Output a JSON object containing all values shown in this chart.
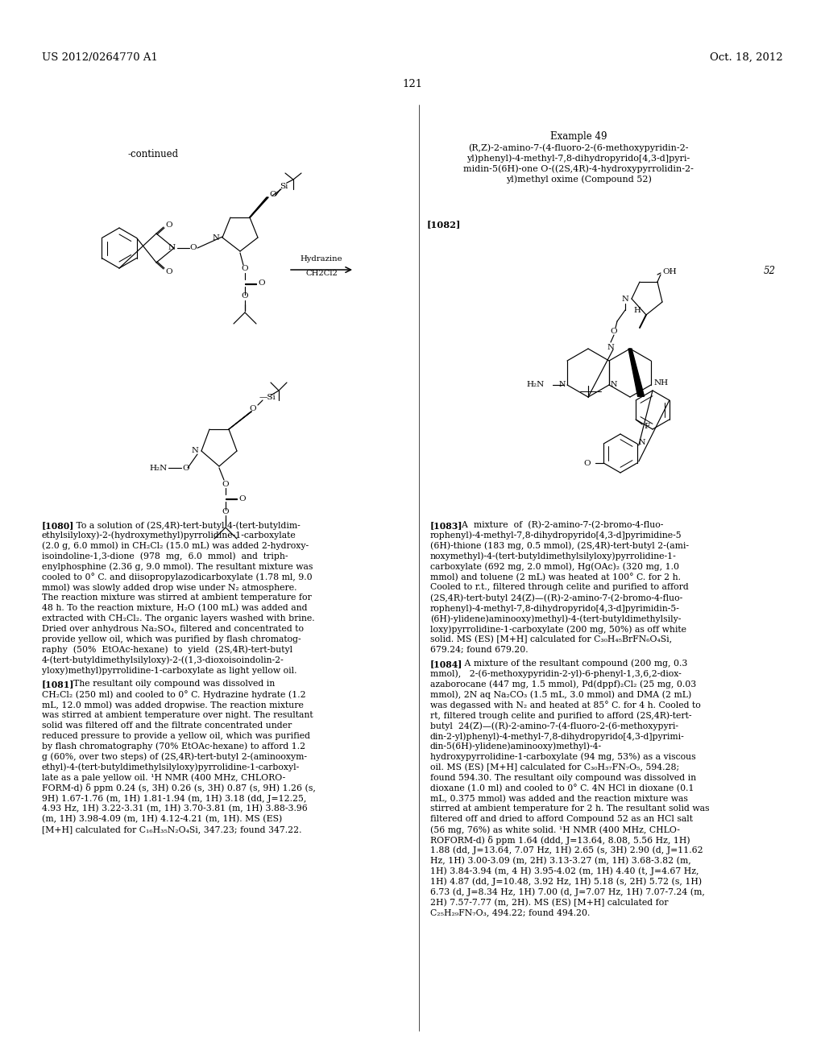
{
  "bg": "#ffffff",
  "header_left": "US 2012/0264770 A1",
  "header_right": "Oct. 18, 2012",
  "page_num": "121",
  "continued": "-continued",
  "ex49_title": "Example 49",
  "ex49_sub1": "(R,Z)-2-amino-7-(4-fluoro-2-(6-methoxypyridin-2-",
  "ex49_sub2": "yl)phenyl)-4-methyl-7,8-dihydropyrido[4,3-d]pyri-",
  "ex49_sub3": "midin-5(6H)-one O-((2S,4R)-4-hydroxypyrrolidin-2-",
  "ex49_sub4": "yl)methyl oxime (Compound 52)",
  "lbl1082": "[1082]",
  "cmpd52": "52",
  "rxn_top": "Hydrazine",
  "rxn_bot": "CH2Cl2",
  "p1080_bold": "[1080]",
  "p1080_text": "   To a solution of (2S,4R)-tert-butyl 4-(tert-butyldim-\nethylsilyloxy)-2-(hydroxymethyl)pyrrolidine-1-carboxylate\n(2.0 g, 6.0 mmol) in CH₂Cl₂ (15.0 mL) was added 2-hydroxy-\nisoindoline-1,3-dione  (978  mg,  6.0  mmol)  and  triph-\nenylphosphine (2.36 g, 9.0 mmol). The resultant mixture was\ncooled to 0° C. and diisopropylazodicarboxylate (1.78 ml, 9.0\nmmol) was slowly added drop wise under N₂ atmosphere.\nThe reaction mixture was stirred at ambient temperature for\n48 h. To the reaction mixture, H₂O (100 mL) was added and\nextracted with CH₂Cl₂. The organic layers washed with brine.\nDried over anhydrous Na₂SO₄, filtered and concentrated to\nprovide yellow oil, which was purified by flash chromatog-\nraphy  (50%  EtOAc-hexane)  to  yield  (2S,4R)-tert-butyl\n4-(tert-butyldimethylsilyloxy)-2-((1,3-dioxoisoindolin-2-\nyloxy)methyl)pyrrolidine-1-carboxylate as light yellow oil.",
  "p1081_bold": "[1081]",
  "p1081_text": "  The resultant oily compound was dissolved in\nCH₂Cl₂ (250 ml) and cooled to 0° C. Hydrazine hydrate (1.2\nmL, 12.0 mmol) was added dropwise. The reaction mixture\nwas stirred at ambient temperature over night. The resultant\nsolid was filtered off and the filtrate concentrated under\nreduced pressure to provide a yellow oil, which was purified\nby flash chromatography (70% EtOAc-hexane) to afford 1.2\ng (60%, over two steps) of (2S,4R)-tert-butyl 2-(aminooxym-\nethyl)-4-(tert-butyldimethylsilyloxy)pyrrolidine-1-carboxyl-\nlate as a pale yellow oil. ¹H NMR (400 MHz, CHLORO-\nFORM-d) δ ppm 0.24 (s, 3H) 0.26 (s, 3H) 0.87 (s, 9H) 1.26 (s,\n9H) 1.67-1.76 (m, 1H) 1.81-1.94 (m, 1H) 3.18 (dd, J=12.25,\n4.93 Hz, 1H) 3.22-3.31 (m, 1H) 3.70-3.81 (m, 1H) 3.88-3.96\n(m, 1H) 3.98-4.09 (m, 1H) 4.12-4.21 (m, 1H). MS (ES)\n[M+H] calculated for C₁₆H₃₅N₂O₄Si, 347.23; found 347.22.",
  "p1083_bold": "[1083]",
  "p1083_text": "  A  mixture  of  (R)-2-amino-7-(2-bromo-4-fluo-\nrophenyl)-4-methyl-7,8-dihydropyrido[4,3-d]pyrimidine-5\n(6H)-thione (183 mg, 0.5 mmol), (2S,4R)-tert-butyl 2-(ami-\nnoxymethyl)-4-(tert-butyldimethylsilyloxy)pyrrolidine-1-\ncarboxylate (692 mg, 2.0 mmol), Hg(OAc)₂ (320 mg, 1.0\nmmol) and toluene (2 mL) was heated at 100° C. for 2 h.\nCooled to r.t., filtered through celite and purified to afford\n(2S,4R)-tert-butyl 24(Z)—((R)-2-amino-7-(2-bromo-4-fluo-\nrophenyl)-4-methyl-7,8-dihydropyrido[4,3-d]pyrimidin-5-\n(6H)-ylidene)aminooxy)methyl)-4-(tert-butyldimethylsily-\nloxy)pyrrolidine-1-carboxylate (200 mg, 50%) as off white\nsolid. MS (ES) [M+H] calculated for C₃₀H₄₅BrFN₆O₄Si,\n679.24; found 679.20.",
  "p1084_bold": "[1084]",
  "p1084_text": "   A mixture of the resultant compound (200 mg, 0.3\nmmol),   2-(6-methoxypyridin-2-yl)-6-phenyl-1,3,6,2-diox-\nazaborocane (447 mg, 1.5 mmol), Pd(dppf)₂Cl₂ (25 mg, 0.03\nmmol), 2N aq Na₂CO₃ (1.5 mL, 3.0 mmol) and DMA (2 mL)\nwas degassed with N₂ and heated at 85° C. for 4 h. Cooled to\nrt, filtered trough celite and purified to afford (2S,4R)-tert-\nbutyl  24(Z)—((R)-2-amino-7-(4-fluoro-2-(6-methoxypyri-\ndin-2-yl)phenyl)-4-methyl-7,8-dihydropyrido[4,3-d]pyrimi-\ndin-5(6H)-ylidene)aminooxy)methyl)-4-\nhydroxypyrrolidine-1-carboxylate (94 mg, 53%) as a viscous\noil. MS (ES) [M+H] calculated for C₃₀H₃₇FN₇O₅, 594.28;\nfound 594.30. The resultant oily compound was dissolved in\ndioxane (1.0 ml) and cooled to 0° C. 4N HCl in dioxane (0.1\nmL, 0.375 mmol) was added and the reaction mixture was\nstirred at ambient temperature for 2 h. The resultant solid was\nfiltered off and dried to afford Compound 52 as an HCl salt\n(56 mg, 76%) as white solid. ¹H NMR (400 MHz, CHLO-\nROFORM-d) δ ppm 1.64 (ddd, J=13.64, 8.08, 5.56 Hz, 1H)\n1.88 (dd, J=13.64, 7.07 Hz, 1H) 2.65 (s, 3H) 2.90 (d, J=11.62\nHz, 1H) 3.00-3.09 (m, 2H) 3.13-3.27 (m, 1H) 3.68-3.82 (m,\n1H) 3.84-3.94 (m, 4 H) 3.95-4.02 (m, 1H) 4.40 (t, J=4.67 Hz,\n1H) 4.87 (dd, J=10.48, 3.92 Hz, 1H) 5.18 (s, 2H) 5.72 (s, 1H)\n6.73 (d, J=8.34 Hz, 1H) 7.00 (d, J=7.07 Hz, 1H) 7.07-7.24 (m,\n2H) 7.57-7.77 (m, 2H). MS (ES) [M+H] calculated for\nC₂₅H₂₉FN₇O₃, 494.22; found 494.20."
}
